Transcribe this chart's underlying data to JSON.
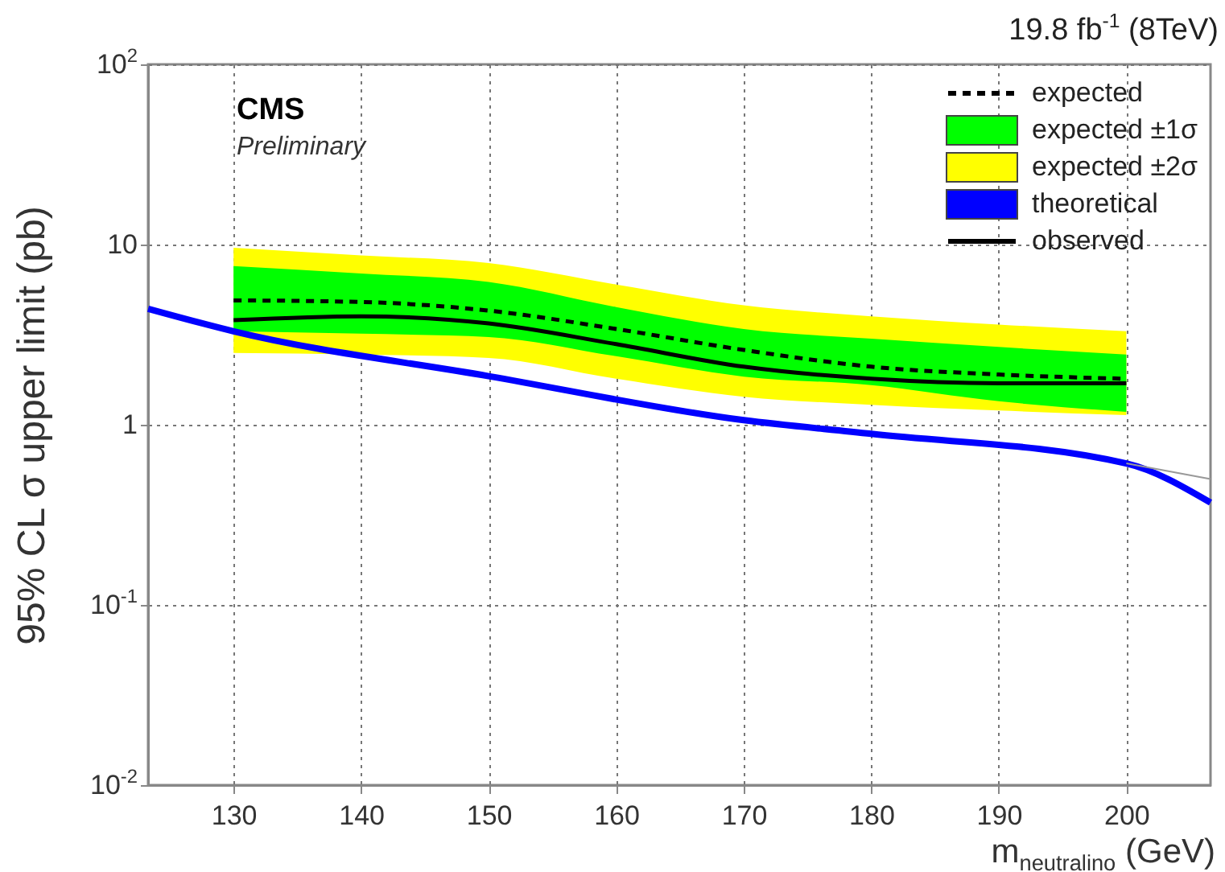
{
  "chart_data": {
    "type": "line",
    "xlabel": "m$_{neutralino}$ (GeV)",
    "ylabel": "95% CL σ upper limit (pb)",
    "annotations": [
      "CMS",
      "Preliminary",
      "19.8 fb$^{-1}$ (8TeV)"
    ],
    "x": [
      130,
      140,
      150,
      160,
      170,
      180,
      190,
      200
    ],
    "series": [
      {
        "name": "expected",
        "type": "line",
        "color": "#000000",
        "line_style": "dashed",
        "values": [
          4.9,
          4.8,
          4.3,
          3.4,
          2.6,
          2.1,
          1.9,
          1.8
        ]
      },
      {
        "name": "expected ±1σ",
        "type": "area",
        "color": "#00ff00",
        "values": [
          null,
          null,
          null,
          null,
          null,
          null,
          null,
          null
        ],
        "lower": [
          3.3,
          3.2,
          3.07,
          2.4,
          1.85,
          1.66,
          1.35,
          1.18
        ],
        "upper": [
          7.6,
          6.9,
          6.2,
          4.5,
          3.4,
          3.0,
          2.7,
          2.45
        ]
      },
      {
        "name": "expected ±2σ",
        "type": "area",
        "color": "#ffff00",
        "values": [
          null,
          null,
          null,
          null,
          null,
          null,
          null,
          null
        ],
        "lower": [
          2.5,
          2.45,
          2.35,
          1.8,
          1.43,
          1.29,
          1.2,
          1.13
        ],
        "upper": [
          9.6,
          8.7,
          7.9,
          6.0,
          4.6,
          4.0,
          3.6,
          3.3
        ]
      },
      {
        "name": "theoretical",
        "type": "line",
        "color": "#0000ff",
        "x": [
          123.3,
          130,
          150,
          170,
          180,
          200,
          206.6
        ],
        "values": [
          4.4,
          3.3,
          1.86,
          1.06,
          0.89,
          0.61,
          0.37
        ]
      },
      {
        "name": "observed",
        "type": "line",
        "color": "#000000",
        "line_style": "solid",
        "values": [
          3.8,
          4.0,
          3.65,
          2.8,
          2.1,
          1.8,
          1.7,
          1.7
        ]
      },
      {
        "type": "line",
        "color": "#999999",
        "x": [
          200,
          206.6
        ],
        "values": [
          0.61,
          0.5
        ]
      }
    ],
    "xlim": [
      123.3,
      206.6
    ],
    "ylim": [
      0.01,
      100
    ],
    "xticks": [
      130,
      140,
      150,
      160,
      170,
      180,
      190,
      200
    ],
    "yticks": [
      {
        "value": 0.01,
        "label": "10$^{-2}$"
      },
      {
        "value": 0.1,
        "label": "10$^{-1}$"
      },
      1,
      10,
      {
        "value": 100,
        "label": "10$^{2}$"
      }
    ],
    "log": true,
    "grid": true,
    "legend": "top right"
  }
}
